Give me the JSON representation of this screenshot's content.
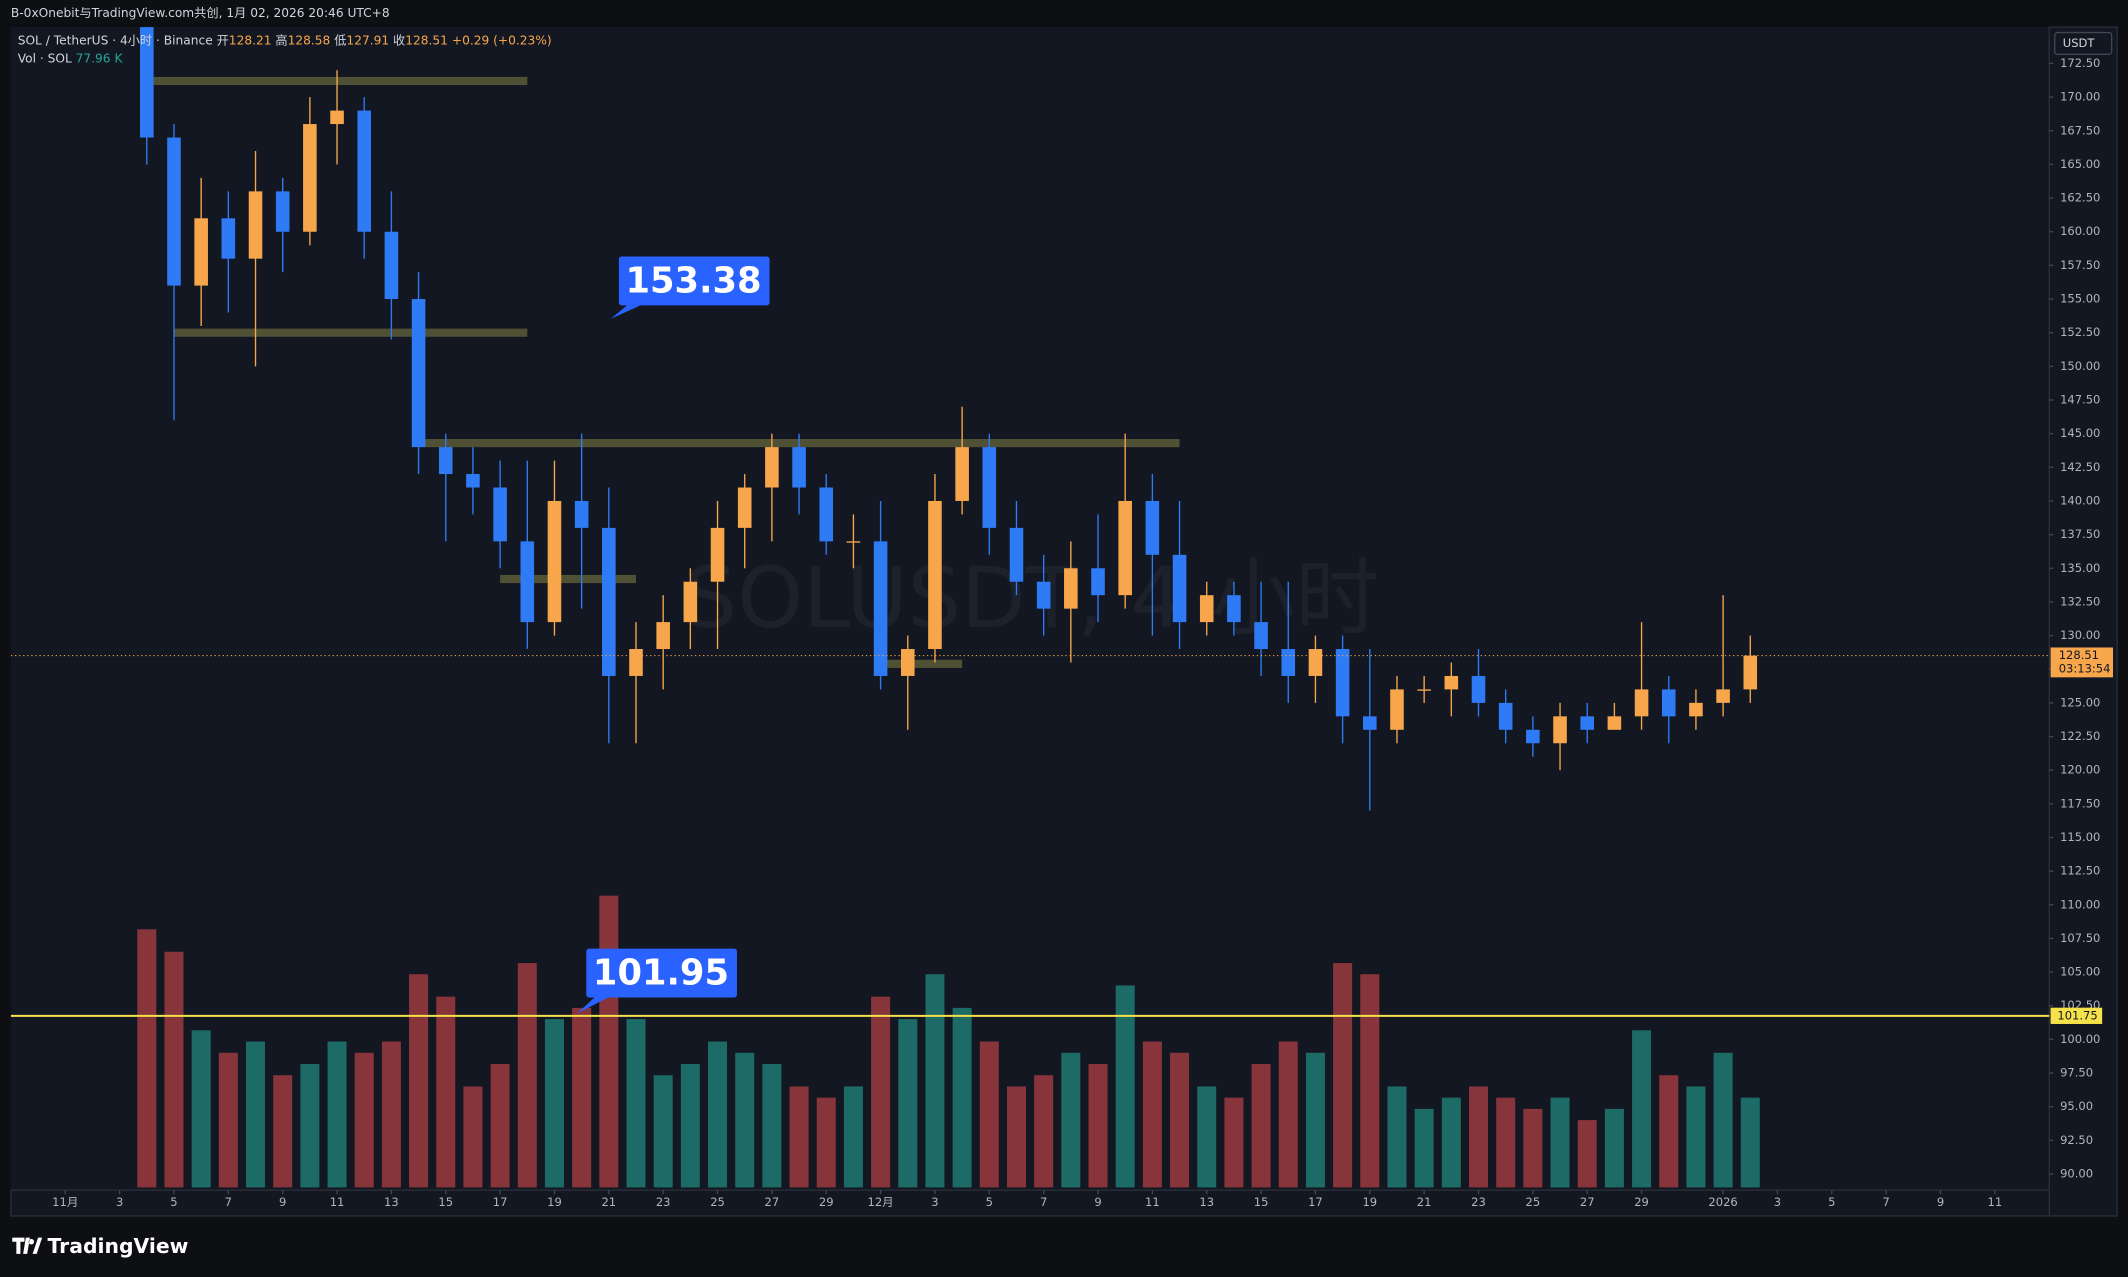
{
  "header": {
    "credit": "B-0xOnebit与TradingView.com共创, 1月 02, 2026 20:46 UTC+8"
  },
  "footer": {
    "brand": "TradingView"
  },
  "chart_data": {
    "type": "candlestick",
    "legend": {
      "symbol": "SOL / TetherUS · 4小时 · Binance",
      "open_label": "开",
      "open": "128.21",
      "high_label": "高",
      "high": "128.58",
      "low_label": "低",
      "low": "127.91",
      "close_label": "收",
      "close": "128.51",
      "change": "+0.29 (+0.23%)",
      "volume_name": "Vol · SOL",
      "volume": "77.96 K"
    },
    "watermark": "SOLUSDT, 4 小时",
    "currency": "USDT",
    "up_color": "#f7a64b",
    "down_color": "#2f7bf5",
    "volume_up_color": "#1f7a72",
    "volume_down_color": "#9e3a3f",
    "grid": false,
    "xlim": [
      "10-30",
      "01-13"
    ],
    "ylim": [
      88.8,
      175.2
    ],
    "yticks": [
      {
        "value": 90,
        "label": "90.00"
      },
      {
        "value": 92.5,
        "label": "92.50"
      },
      {
        "value": 95,
        "label": "95.00"
      },
      {
        "value": 97.5,
        "label": "97.50"
      },
      {
        "value": 100,
        "label": "100.00"
      },
      {
        "value": 102.5,
        "label": "102.50"
      },
      {
        "value": 105,
        "label": "105.00"
      },
      {
        "value": 107.5,
        "label": "107.50"
      },
      {
        "value": 110,
        "label": "110.00"
      },
      {
        "value": 112.5,
        "label": "112.50"
      },
      {
        "value": 115,
        "label": "115.00"
      },
      {
        "value": 117.5,
        "label": "117.50"
      },
      {
        "value": 120,
        "label": "120.00"
      },
      {
        "value": 122.5,
        "label": "122.50"
      },
      {
        "value": 125,
        "label": "125.00"
      },
      {
        "value": 127.5,
        "label": "127.50"
      },
      {
        "value": 130,
        "label": "130.00"
      },
      {
        "value": 132.5,
        "label": "132.50"
      },
      {
        "value": 135,
        "label": "135.00"
      },
      {
        "value": 137.5,
        "label": "137.50"
      },
      {
        "value": 140,
        "label": "140.00"
      },
      {
        "value": 142.5,
        "label": "142.50"
      },
      {
        "value": 145,
        "label": "145.00"
      },
      {
        "value": 147.5,
        "label": "147.50"
      },
      {
        "value": 150,
        "label": "150.00"
      },
      {
        "value": 152.5,
        "label": "152.50"
      },
      {
        "value": 155,
        "label": "155.00"
      },
      {
        "value": 157.5,
        "label": "157.50"
      },
      {
        "value": 160,
        "label": "160.00"
      },
      {
        "value": 162.5,
        "label": "162.50"
      },
      {
        "value": 165,
        "label": "165.00"
      },
      {
        "value": 167.5,
        "label": "167.50"
      },
      {
        "value": 170,
        "label": "170.00"
      },
      {
        "value": 172.5,
        "label": "172.50"
      }
    ],
    "xticks": [
      {
        "value": "11-01",
        "label": "11月"
      },
      {
        "value": "11-03",
        "label": "3"
      },
      {
        "value": "11-05",
        "label": "5"
      },
      {
        "value": "11-07",
        "label": "7"
      },
      {
        "value": "11-09",
        "label": "9"
      },
      {
        "value": "11-11",
        "label": "11"
      },
      {
        "value": "11-13",
        "label": "13"
      },
      {
        "value": "11-15",
        "label": "15"
      },
      {
        "value": "11-17",
        "label": "17"
      },
      {
        "value": "11-19",
        "label": "19"
      },
      {
        "value": "11-21",
        "label": "21"
      },
      {
        "value": "11-23",
        "label": "23"
      },
      {
        "value": "11-25",
        "label": "25"
      },
      {
        "value": "11-27",
        "label": "27"
      },
      {
        "value": "11-29",
        "label": "29"
      },
      {
        "value": "12-01",
        "label": "12月"
      },
      {
        "value": "12-03",
        "label": "3"
      },
      {
        "value": "12-05",
        "label": "5"
      },
      {
        "value": "12-07",
        "label": "7"
      },
      {
        "value": "12-09",
        "label": "9"
      },
      {
        "value": "12-11",
        "label": "11"
      },
      {
        "value": "12-13",
        "label": "13"
      },
      {
        "value": "12-15",
        "label": "15"
      },
      {
        "value": "12-17",
        "label": "17"
      },
      {
        "value": "12-19",
        "label": "19"
      },
      {
        "value": "12-21",
        "label": "21"
      },
      {
        "value": "12-23",
        "label": "23"
      },
      {
        "value": "12-25",
        "label": "25"
      },
      {
        "value": "12-27",
        "label": "27"
      },
      {
        "value": "12-29",
        "label": "29"
      },
      {
        "value": "01-01",
        "label": "2026"
      },
      {
        "value": "01-03",
        "label": "3"
      },
      {
        "value": "01-05",
        "label": "5"
      },
      {
        "value": "01-07",
        "label": "7"
      },
      {
        "value": "01-09",
        "label": "9"
      },
      {
        "value": "01-11",
        "label": "11"
      }
    ],
    "x": [
      "11-04",
      "11-05",
      "11-06",
      "11-07",
      "11-08",
      "11-09",
      "11-10",
      "11-11",
      "11-12",
      "11-13",
      "11-14",
      "11-15",
      "11-16",
      "11-17",
      "11-18",
      "11-19",
      "11-20",
      "11-21",
      "11-22",
      "11-23",
      "11-24",
      "11-25",
      "11-26",
      "11-27",
      "11-28",
      "11-29",
      "11-30",
      "12-01",
      "12-02",
      "12-03",
      "12-04",
      "12-05",
      "12-06",
      "12-07",
      "12-08",
      "12-09",
      "12-10",
      "12-11",
      "12-12",
      "12-13",
      "12-14",
      "12-15",
      "12-16",
      "12-17",
      "12-18",
      "12-19",
      "12-20",
      "12-21",
      "12-22",
      "12-23",
      "12-24",
      "12-25",
      "12-26",
      "12-27",
      "12-28",
      "12-29",
      "12-30",
      "12-31",
      "01-01",
      "01-02"
    ],
    "open": [
      176,
      167,
      156,
      161,
      158,
      163,
      160,
      168,
      169,
      160,
      155,
      144,
      142,
      141,
      137,
      131,
      140,
      138,
      127,
      129,
      131,
      134,
      138,
      141,
      144,
      141,
      137,
      137,
      127,
      129,
      140,
      144,
      138,
      134,
      132,
      135,
      133,
      140,
      136,
      131,
      133,
      131,
      129,
      127,
      129,
      124,
      123,
      126,
      126,
      127,
      125,
      123,
      122,
      124,
      123,
      124,
      126,
      124,
      125,
      126
    ],
    "high": [
      177,
      168,
      164,
      163,
      166,
      164,
      170,
      172,
      170,
      163,
      157,
      145,
      144,
      143,
      143,
      143,
      145,
      141,
      131,
      133,
      135,
      140,
      142,
      145,
      145,
      142,
      139,
      140,
      130,
      142,
      147,
      145,
      140,
      136,
      137,
      139,
      145,
      142,
      140,
      134,
      134,
      134,
      134,
      130,
      130,
      129,
      127,
      127,
      128,
      129,
      126,
      124,
      125,
      125,
      125,
      131,
      127,
      126,
      133,
      130
    ],
    "low": [
      165,
      146,
      153,
      154,
      150,
      157,
      159,
      165,
      158,
      152,
      142,
      137,
      139,
      135,
      129,
      130,
      132,
      122,
      122,
      126,
      129,
      129,
      135,
      137,
      139,
      136,
      135,
      126,
      123,
      128,
      139,
      136,
      133,
      130,
      128,
      131,
      132,
      130,
      129,
      130,
      130,
      127,
      125,
      125,
      122,
      117,
      122,
      125,
      124,
      124,
      122,
      121,
      120,
      122,
      123,
      123,
      122,
      123,
      124,
      125
    ],
    "close": [
      167,
      156,
      161,
      158,
      163,
      160,
      168,
      169,
      160,
      155,
      144,
      142,
      141,
      137,
      131,
      140,
      138,
      127,
      129,
      131,
      134,
      138,
      141,
      144,
      141,
      137,
      137,
      127,
      129,
      140,
      144,
      138,
      134,
      132,
      135,
      133,
      140,
      136,
      131,
      133,
      131,
      129,
      127,
      129,
      124,
      123,
      126,
      126,
      127,
      125,
      123,
      122,
      124,
      123,
      124,
      126,
      124,
      125,
      126,
      128.51
    ],
    "volume": [
      2300,
      2100,
      1400,
      1200,
      1300,
      1000,
      1100,
      1300,
      1200,
      1300,
      1900,
      1700,
      900,
      1100,
      2000,
      1500,
      1600,
      2600,
      1500,
      1000,
      1100,
      1300,
      1200,
      1100,
      900,
      800,
      900,
      1700,
      1500,
      1900,
      1600,
      1300,
      900,
      1000,
      1200,
      1100,
      1800,
      1300,
      1200,
      900,
      800,
      1100,
      1300,
      1200,
      2000,
      1900,
      900,
      700,
      800,
      900,
      800,
      700,
      800,
      600,
      700,
      1400,
      1000,
      900,
      1200,
      800
    ],
    "zones": [
      {
        "price": 171.2,
        "from": "11-04",
        "to": "11-18"
      },
      {
        "price": 152.5,
        "from": "11-05",
        "to": "11-18"
      },
      {
        "price": 144.3,
        "from": "11-14",
        "to": "12-12"
      },
      {
        "price": 134.2,
        "from": "11-17",
        "to": "11-22"
      },
      {
        "price": 127.9,
        "from": "12-01",
        "to": "12-04"
      }
    ],
    "level_line": {
      "value": 101.75,
      "label": "101.75",
      "color": "#f5e14a"
    },
    "last_price": {
      "value": 128.51,
      "label": "128.51",
      "countdown": "03:13:54",
      "color": "#f7a64b"
    },
    "annotations": [
      {
        "text": "153.38"
      },
      {
        "text": "101.95"
      }
    ]
  }
}
